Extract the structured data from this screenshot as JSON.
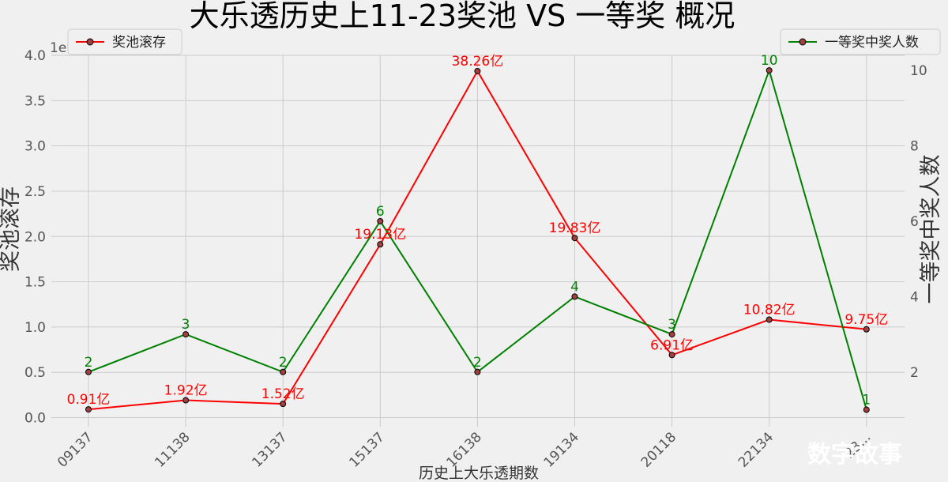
{
  "chart_data": {
    "type": "line",
    "title": "大乐透历史上11-23奖池 VS 一等奖 概况",
    "xlabel": "历史上大乐透期数",
    "ylabel_left": "奖池滚存",
    "ylabel_right": "一等奖中奖人数",
    "y_offset_label": "1e9",
    "categories": [
      "09137",
      "11138",
      "13137",
      "15137",
      "16138",
      "19134",
      "20118",
      "22134",
      "23..."
    ],
    "left_ylim": [
      -0.1,
      4.0
    ],
    "left_ticks": [
      "0.0",
      "0.5",
      "1.0",
      "1.5",
      "2.0",
      "2.5",
      "3.0",
      "3.5",
      "4.0"
    ],
    "right_ylim": [
      0.55,
      10.4
    ],
    "right_ticks": [
      "2",
      "4",
      "6",
      "8",
      "10"
    ],
    "grid": true,
    "series": [
      {
        "name": "奖池滚存",
        "axis": "left",
        "color": "#ff0000",
        "values": [
          0.091,
          0.192,
          0.152,
          1.913,
          3.826,
          1.983,
          0.691,
          1.082,
          0.975
        ],
        "data_labels": [
          "0.91亿",
          "1.92亿",
          "1.52亿",
          "19.13亿",
          "38.26亿",
          "19.83亿",
          "6.91亿",
          "10.82亿",
          "9.75亿"
        ],
        "legend_position": "top-left"
      },
      {
        "name": "一等奖中奖人数",
        "axis": "right",
        "color": "#008000",
        "values": [
          2,
          3,
          2,
          6,
          2,
          4,
          3,
          10,
          1
        ],
        "data_labels": [
          "2",
          "3",
          "2",
          "6",
          "2",
          "4",
          "3",
          "10",
          "1"
        ],
        "legend_position": "top-right"
      }
    ]
  },
  "watermark": "数字故事"
}
